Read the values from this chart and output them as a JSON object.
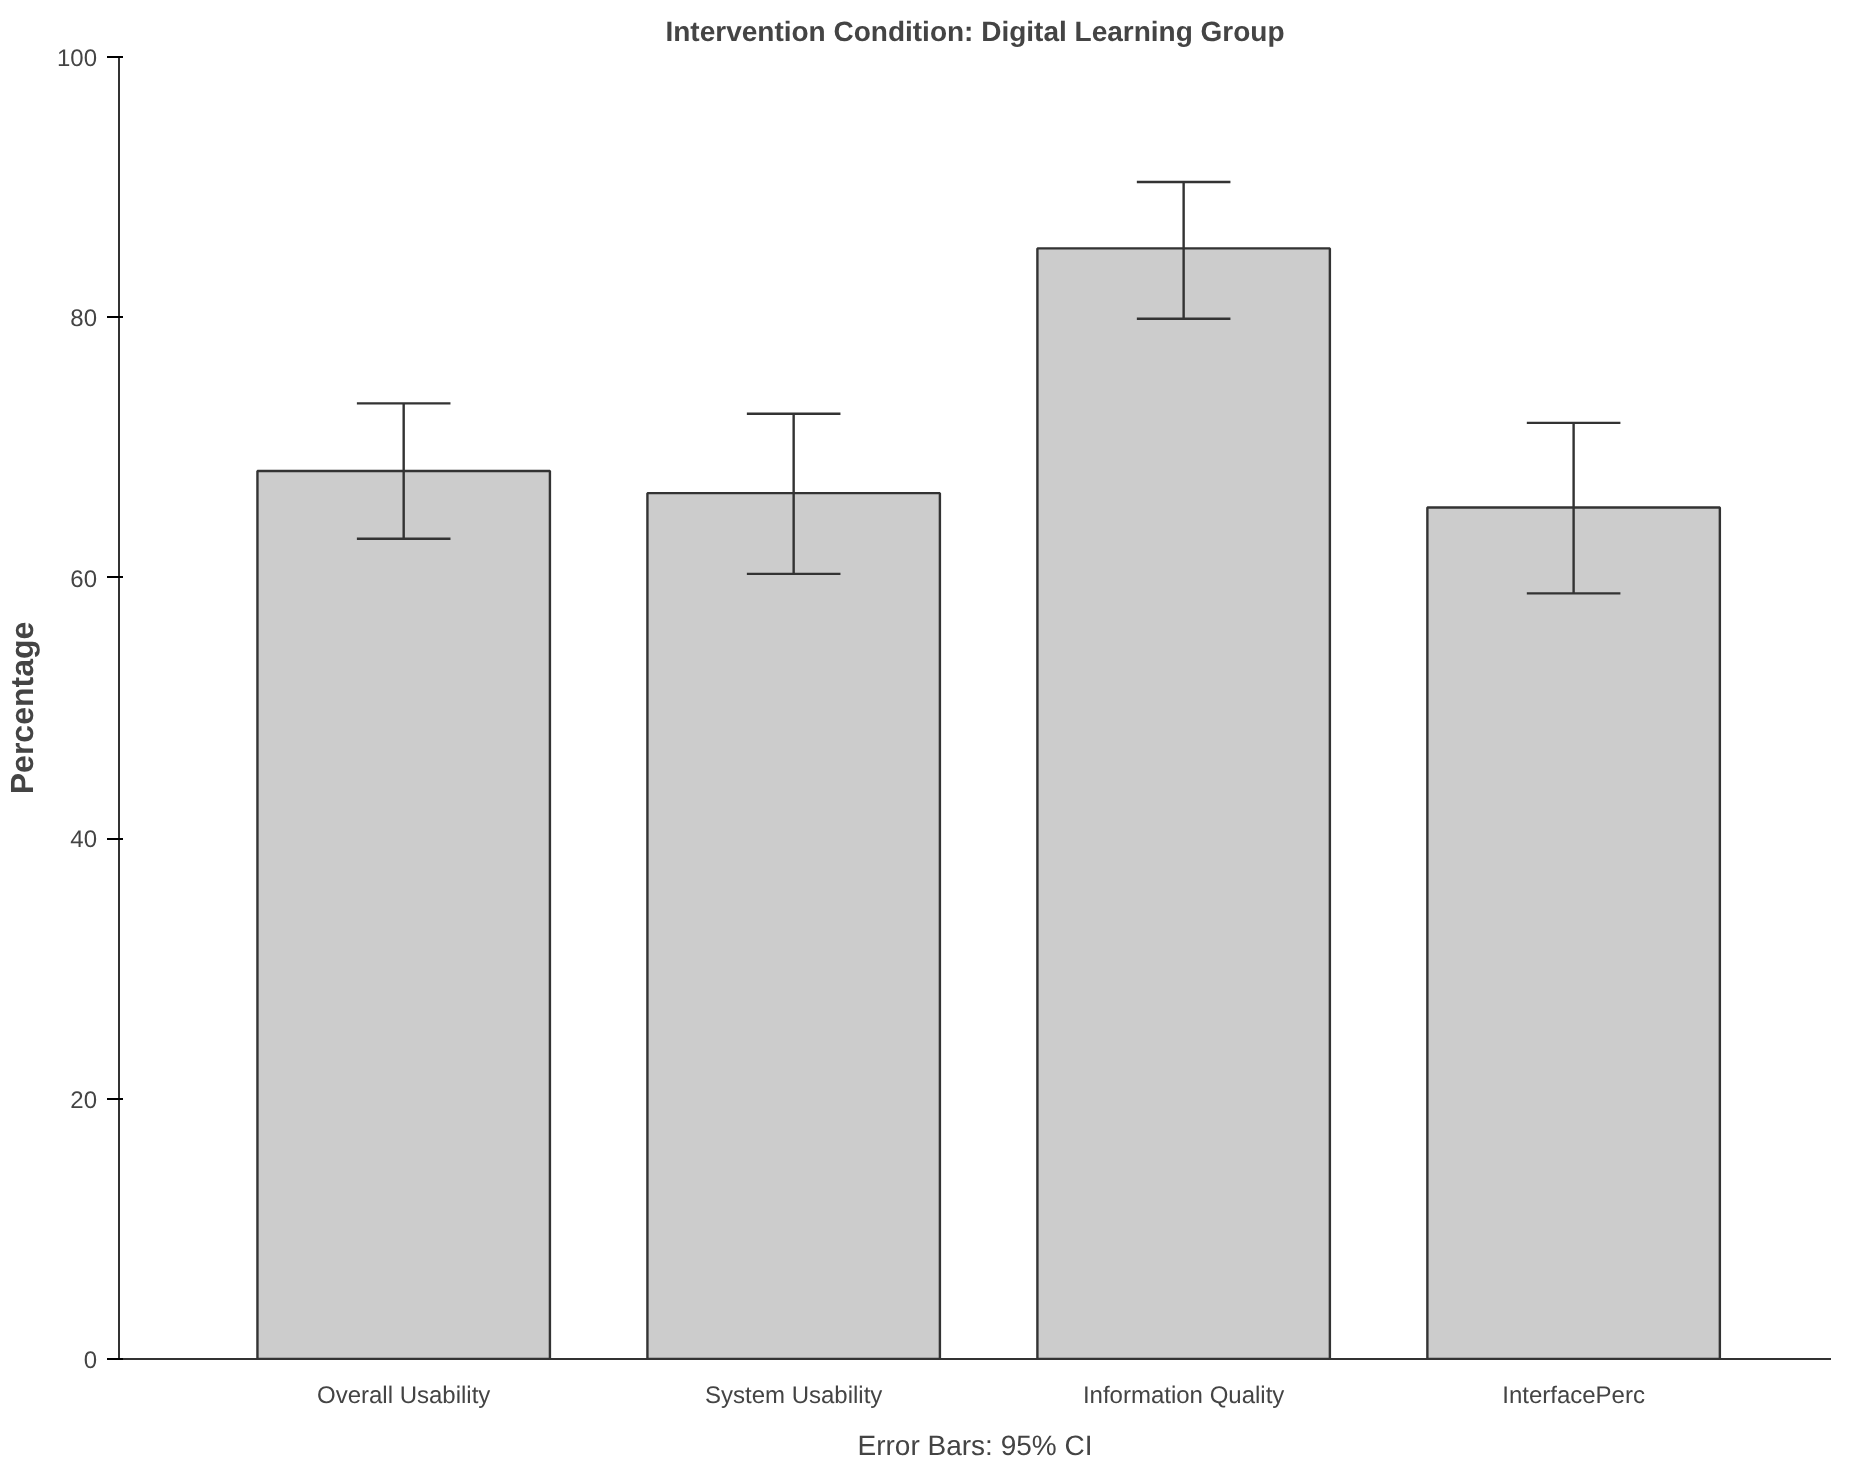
{
  "chart_data": {
    "type": "bar",
    "title": "Intervention Condition: Digital Learning Group",
    "ylabel": "Percentage",
    "categories": [
      "Overall Usability",
      "System Usability",
      "Information Quality",
      "InterfacePerc"
    ],
    "values": [
      68.2,
      66.5,
      85.3,
      65.4
    ],
    "color": "#cccccc",
    "errors": [
      [
        63.0,
        73.4
      ],
      [
        60.3,
        72.6
      ],
      [
        79.9,
        90.4
      ],
      [
        58.8,
        71.9
      ]
    ],
    "ylim": [
      0,
      100
    ],
    "yticks": [
      0,
      20,
      40,
      60,
      80,
      100
    ],
    "grid": false,
    "annotations": [
      "Error Bars: 95% CI"
    ]
  }
}
